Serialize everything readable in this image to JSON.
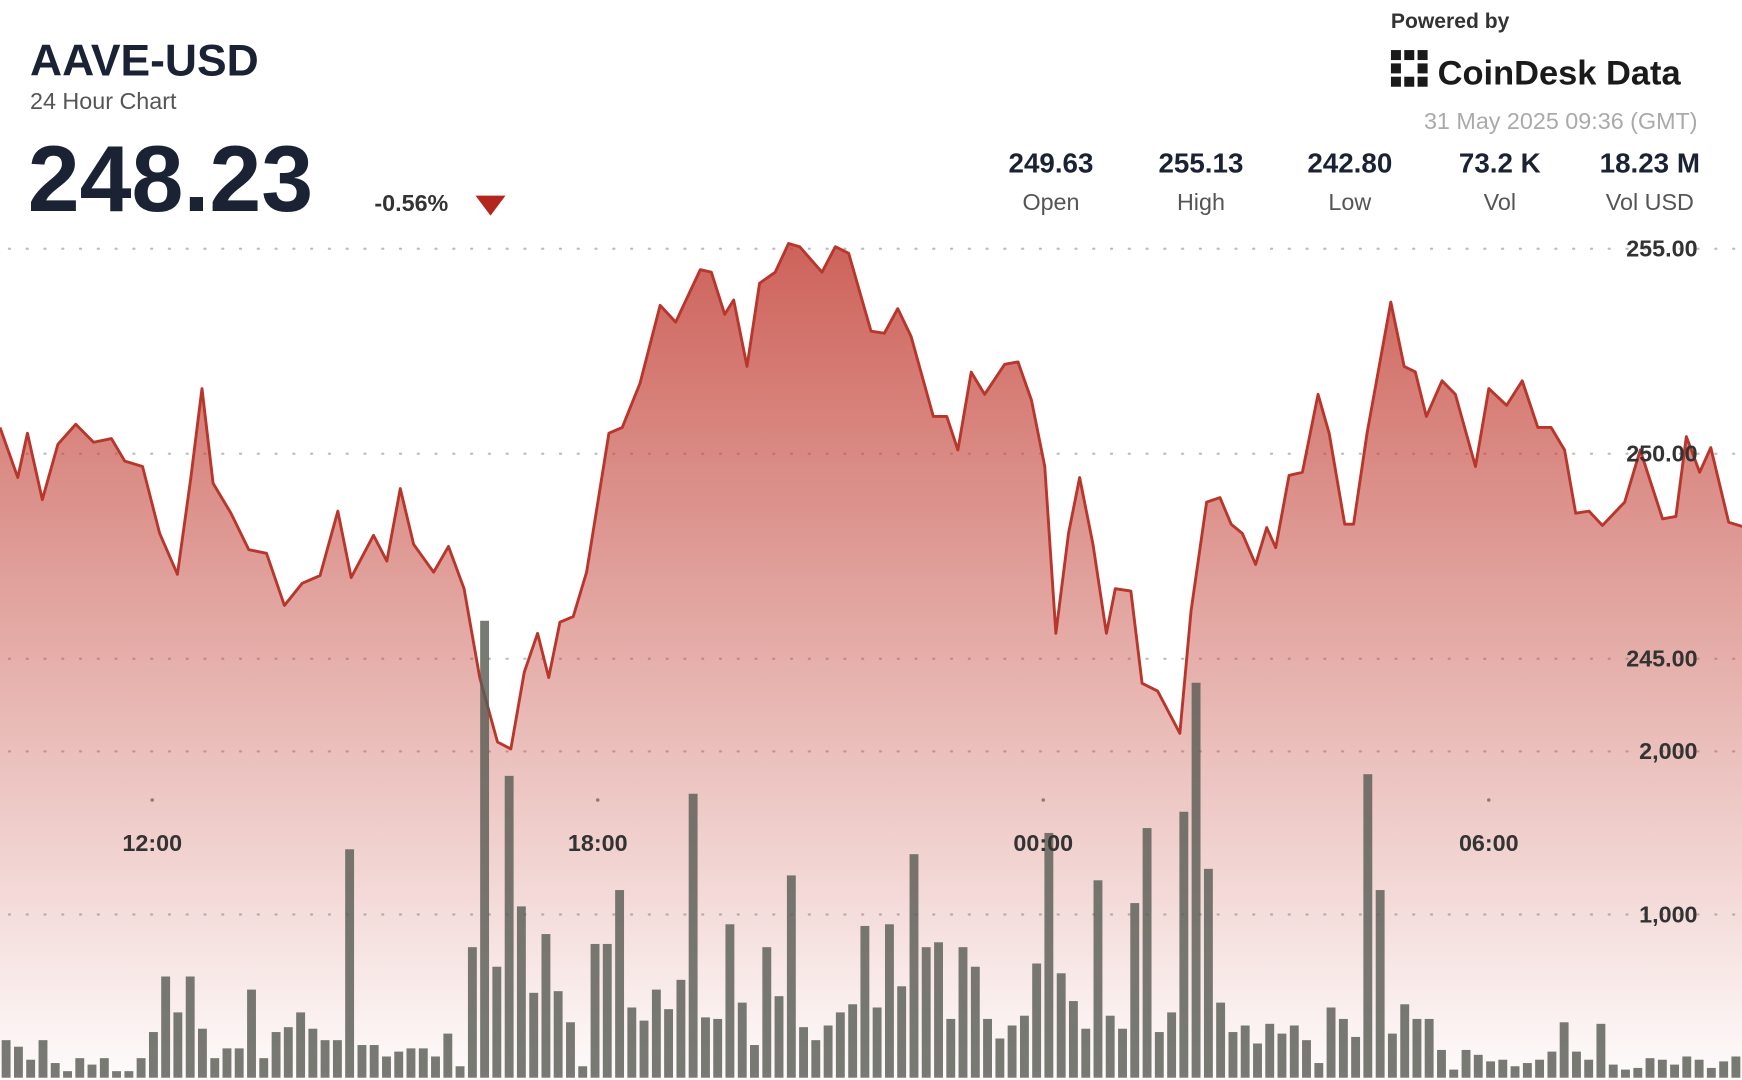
{
  "header": {
    "symbol": "AAVE-USD",
    "subtitle": "24 Hour Chart",
    "price": "248.23",
    "change": "-0.56%",
    "powered_by": "Powered by",
    "brand": "CoinDesk Data",
    "timestamp": "31 May 2025 09:36 (GMT)",
    "stats": [
      {
        "value": "249.63",
        "label": "Open"
      },
      {
        "value": "255.13",
        "label": "High"
      },
      {
        "value": "242.80",
        "label": "Low"
      },
      {
        "value": "73.2 K",
        "label": "Vol"
      },
      {
        "value": "18.23 M",
        "label": "Vol USD"
      }
    ]
  },
  "chart_data": [
    {
      "type": "line",
      "color": "#b8362b",
      "area_color": "#c4463c",
      "grid": true,
      "xlim": [
        9.95,
        33.41
      ],
      "xticks": [
        {
          "value": 12,
          "label": "12:00"
        },
        {
          "value": 18,
          "label": "18:00"
        },
        {
          "value": 24,
          "label": "00:00"
        },
        {
          "value": 30,
          "label": "06:00"
        }
      ],
      "ylim": [
        234.78,
        255.24
      ],
      "yticks": [
        {
          "value": 245,
          "label": "245.00"
        },
        {
          "value": 250,
          "label": "250.00"
        },
        {
          "value": 255,
          "label": "255.00"
        }
      ],
      "x": [
        9.95,
        10.19,
        10.32,
        10.52,
        10.73,
        10.97,
        11.21,
        11.45,
        11.63,
        11.87,
        12.1,
        12.34,
        12.52,
        12.67,
        12.82,
        13.06,
        13.3,
        13.54,
        13.78,
        14.02,
        14.26,
        14.5,
        14.68,
        14.98,
        15.16,
        15.34,
        15.52,
        15.79,
        15.99,
        16.2,
        16.41,
        16.65,
        16.83,
        17.01,
        17.19,
        17.34,
        17.49,
        17.67,
        17.85,
        18.15,
        18.33,
        18.57,
        18.84,
        19.05,
        19.38,
        19.53,
        19.71,
        19.83,
        20.01,
        20.18,
        20.39,
        20.57,
        20.72,
        21.02,
        21.2,
        21.38,
        21.68,
        21.86,
        22.04,
        22.22,
        22.52,
        22.7,
        22.85,
        23.03,
        23.21,
        23.48,
        23.66,
        23.84,
        24.02,
        24.17,
        24.34,
        24.49,
        24.67,
        24.85,
        24.97,
        25.18,
        25.33,
        25.54,
        25.84,
        25.99,
        26.2,
        26.38,
        26.53,
        26.68,
        26.86,
        27.01,
        27.13,
        27.31,
        27.49,
        27.7,
        27.85,
        28.06,
        28.18,
        28.36,
        28.68,
        28.86,
        29.01,
        29.16,
        29.37,
        29.55,
        29.82,
        30.0,
        30.24,
        30.45,
        30.66,
        30.84,
        31.02,
        31.17,
        31.35,
        31.53,
        31.83,
        32.04,
        32.34,
        32.52,
        32.66,
        32.84,
        32.99,
        33.23,
        33.41
      ],
      "values": [
        250.64,
        249.42,
        250.5,
        248.88,
        250.23,
        250.72,
        250.28,
        250.37,
        249.82,
        249.69,
        248.06,
        247.06,
        249.42,
        251.59,
        249.28,
        248.55,
        247.66,
        247.57,
        246.3,
        246.84,
        247.03,
        248.6,
        246.98,
        248.01,
        247.38,
        249.15,
        247.79,
        247.11,
        247.74,
        246.71,
        244.54,
        242.97,
        242.8,
        244.67,
        245.62,
        244.54,
        245.89,
        246.03,
        247.11,
        250.5,
        250.64,
        251.72,
        253.62,
        253.21,
        254.49,
        254.43,
        253.4,
        253.75,
        252.13,
        254.16,
        254.43,
        255.13,
        255.05,
        254.43,
        255.05,
        254.89,
        252.99,
        252.94,
        253.54,
        252.86,
        250.91,
        250.91,
        250.09,
        251.99,
        251.45,
        252.18,
        252.24,
        251.31,
        249.69,
        245.62,
        248.06,
        249.42,
        247.79,
        245.62,
        246.71,
        246.65,
        244.4,
        244.21,
        243.18,
        246.17,
        248.82,
        248.93,
        248.28,
        248.06,
        247.3,
        248.2,
        247.71,
        249.47,
        249.55,
        251.45,
        250.5,
        248.28,
        248.28,
        250.5,
        253.7,
        252.13,
        252.0,
        250.91,
        251.78,
        251.45,
        249.69,
        251.59,
        251.18,
        251.78,
        250.64,
        250.64,
        250.09,
        248.55,
        248.6,
        248.25,
        248.82,
        250.09,
        248.41,
        248.47,
        250.42,
        249.55,
        250.15,
        248.33,
        248.23
      ]
    },
    {
      "type": "bar",
      "color": "#5a5d55",
      "grid": true,
      "ylim": [
        0,
        5140
      ],
      "yticks": [
        {
          "value": 1000,
          "label": "1,000"
        },
        {
          "value": 2000,
          "label": "2,000"
        }
      ],
      "values": [
        230,
        190,
        110,
        230,
        90,
        40,
        120,
        80,
        120,
        40,
        40,
        120,
        280,
        620,
        400,
        620,
        300,
        120,
        180,
        180,
        540,
        120,
        280,
        310,
        400,
        300,
        230,
        230,
        1400,
        200,
        200,
        130,
        160,
        180,
        180,
        130,
        270,
        70,
        800,
        2800,
        680,
        1850,
        1050,
        520,
        880,
        530,
        340,
        70,
        820,
        820,
        1150,
        430,
        350,
        540,
        420,
        600,
        1740,
        370,
        360,
        940,
        460,
        200,
        800,
        500,
        1240,
        310,
        230,
        320,
        400,
        450,
        930,
        430,
        940,
        560,
        1370,
        800,
        830,
        360,
        800,
        680,
        360,
        240,
        320,
        380,
        700,
        1500,
        640,
        470,
        300,
        1210,
        380,
        300,
        1070,
        1530,
        280,
        400,
        1630,
        2420,
        1280,
        460,
        280,
        320,
        210,
        330,
        270,
        320,
        230,
        90,
        430,
        360,
        250,
        1860,
        1150,
        270,
        450,
        360,
        360,
        170,
        50,
        170,
        140,
        100,
        110,
        70,
        90,
        110,
        160,
        340,
        160,
        110,
        330,
        80,
        50,
        60,
        120,
        110,
        80,
        130,
        110,
        60,
        100,
        130
      ]
    }
  ]
}
